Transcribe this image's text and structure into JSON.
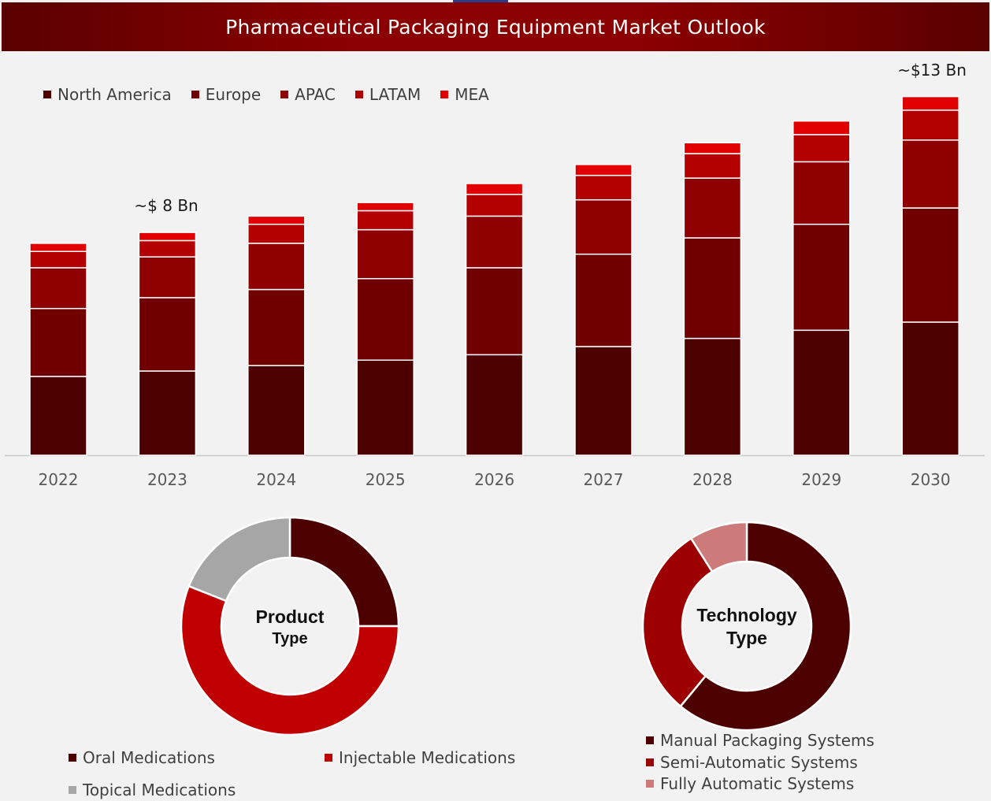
{
  "header": {
    "title": "Pharmaceutical Packaging Equipment Market Outlook"
  },
  "colors": {
    "header_bg": "#8b0000",
    "north_america": "#4d0000",
    "europe": "#700000",
    "apac": "#8f0000",
    "latam": "#b30000",
    "mea": "#e00000"
  },
  "chart_data": [
    {
      "type": "bar",
      "stacked": true,
      "categories": [
        "2022",
        "2023",
        "2024",
        "2025",
        "2026",
        "2027",
        "2028",
        "2029",
        "2030"
      ],
      "series": [
        {
          "name": "North America",
          "color": "#4d0000",
          "values": [
            2.9,
            3.1,
            3.3,
            3.5,
            3.7,
            4.0,
            4.3,
            4.6,
            4.9
          ]
        },
        {
          "name": "Europe",
          "color": "#700000",
          "values": [
            2.5,
            2.7,
            2.8,
            3.0,
            3.2,
            3.4,
            3.7,
            3.9,
            4.2
          ]
        },
        {
          "name": "APAC",
          "color": "#8f0000",
          "values": [
            1.5,
            1.5,
            1.7,
            1.8,
            1.9,
            2.0,
            2.2,
            2.3,
            2.5
          ]
        },
        {
          "name": "LATAM",
          "color": "#b30000",
          "values": [
            0.6,
            0.6,
            0.7,
            0.7,
            0.8,
            0.9,
            0.9,
            1.0,
            1.1
          ]
        },
        {
          "name": "MEA",
          "color": "#e00000",
          "values": [
            0.3,
            0.3,
            0.3,
            0.3,
            0.4,
            0.4,
            0.4,
            0.5,
            0.5
          ]
        }
      ],
      "annotations": [
        {
          "category": "2023",
          "text": "~$ 8 Bn"
        },
        {
          "category": "2030",
          "text": "~$13 Bn"
        }
      ],
      "ylim": [
        0,
        14
      ],
      "legend": "top-left",
      "grid": false
    },
    {
      "type": "pie",
      "variant": "donut",
      "center_label": [
        "Product",
        "Type"
      ],
      "labels": [
        "Oral Medications",
        "Injectable Medications",
        "Topical Medications"
      ],
      "values": [
        25,
        56,
        19
      ],
      "colors": [
        "#4d0000",
        "#c00000",
        "#a6a6a6"
      ],
      "legend": "bottom"
    },
    {
      "type": "pie",
      "variant": "donut",
      "center_label": [
        "Technology",
        "Type"
      ],
      "labels": [
        "Manual Packaging Systems",
        "Semi-Automatic Systems",
        "Fully Automatic Systems"
      ],
      "values": [
        61,
        30,
        9
      ],
      "colors": [
        "#4d0000",
        "#9c0000",
        "#cc7a7a"
      ],
      "legend": "bottom"
    }
  ]
}
